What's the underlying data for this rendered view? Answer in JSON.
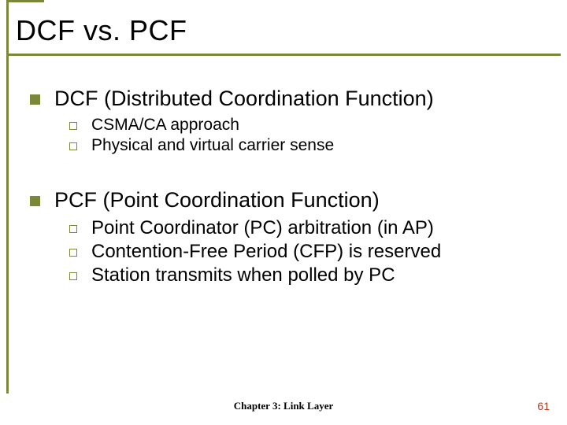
{
  "colors": {
    "accent": "#7d873a",
    "pagenum": "#b23a1f",
    "text": "#000000",
    "bg": "#ffffff"
  },
  "title": "DCF vs. PCF",
  "sections": [
    {
      "heading": "DCF (Distributed Coordination Function)",
      "items_small": true,
      "items": [
        "CSMA/CA approach",
        "Physical and virtual carrier sense"
      ]
    },
    {
      "heading": "PCF (Point Coordination Function)",
      "items_small": false,
      "items": [
        "Point Coordinator (PC) arbitration (in AP)",
        "Contention-Free Period (CFP) is reserved",
        "Station transmits when polled by PC"
      ]
    }
  ],
  "footer": {
    "center": "Chapter 3: Link Layer",
    "page": "61"
  }
}
